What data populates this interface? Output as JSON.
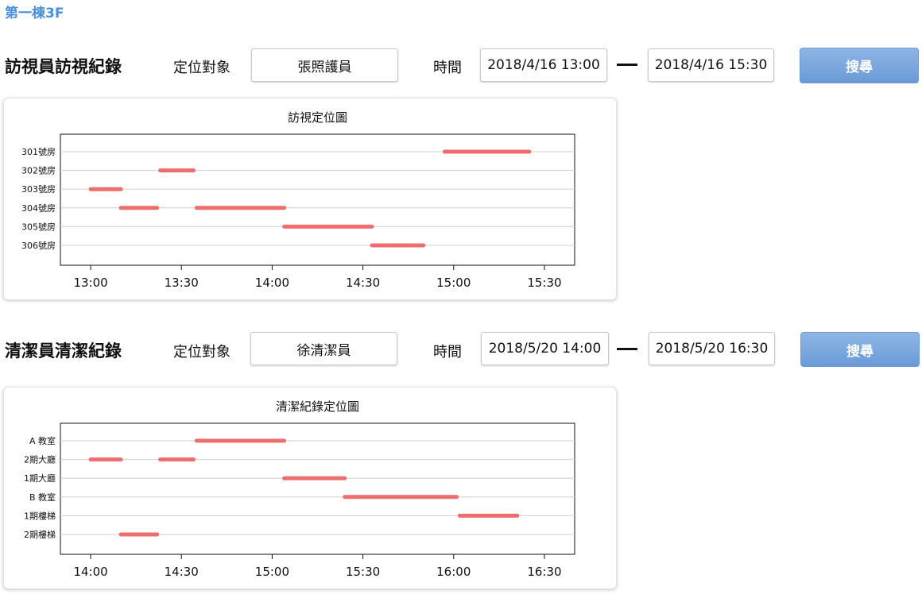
{
  "page": {
    "title": "第一棟3F"
  },
  "sections": [
    {
      "title": "訪視員訪視紀錄",
      "target_label": "定位對象",
      "target_value": "張照護員",
      "time_label": "時間",
      "start": "2018/4/16 13:00",
      "end": "2018/4/16 15:30",
      "search_label": "搜尋"
    },
    {
      "title": "清潔員清潔紀錄",
      "target_label": "定位對象",
      "target_value": "徐清潔員",
      "time_label": "時間",
      "start": "2018/5/20 14:00",
      "end": "2018/5/20 16:30",
      "search_label": "搜尋"
    }
  ],
  "chart_data": [
    {
      "type": "timeline",
      "title": "訪視定位圖",
      "categories": [
        "301號房",
        "302號房",
        "303號房",
        "304號房",
        "305號房",
        "306號房"
      ],
      "x_ticks": [
        "13:00",
        "13:30",
        "14:00",
        "14:30",
        "15:00",
        "15:30"
      ],
      "x_range": [
        "12:50",
        "15:40"
      ],
      "bar_color": "#ee6e6e",
      "series": [
        {
          "category": "301號房",
          "start": "14:57",
          "end": "15:25"
        },
        {
          "category": "302號房",
          "start": "13:23",
          "end": "13:34"
        },
        {
          "category": "303號房",
          "start": "13:00",
          "end": "13:10"
        },
        {
          "category": "304號房",
          "start": "13:10",
          "end": "13:22"
        },
        {
          "category": "304號房",
          "start": "13:35",
          "end": "14:04"
        },
        {
          "category": "305號房",
          "start": "14:04",
          "end": "14:33"
        },
        {
          "category": "306號房",
          "start": "14:33",
          "end": "14:50"
        }
      ]
    },
    {
      "type": "timeline",
      "title": "清潔紀錄定位圖",
      "categories": [
        "A 教室",
        "2期大廳",
        "1期大廳",
        "B 教室",
        "1期樓梯",
        "2期樓梯"
      ],
      "x_ticks": [
        "14:00",
        "14:30",
        "15:00",
        "15:30",
        "16:00",
        "16:30"
      ],
      "x_range": [
        "13:50",
        "16:40"
      ],
      "bar_color": "#ee6e6e",
      "series": [
        {
          "category": "A 教室",
          "start": "14:35",
          "end": "15:04"
        },
        {
          "category": "2期大廳",
          "start": "14:00",
          "end": "14:10"
        },
        {
          "category": "2期大廳",
          "start": "14:23",
          "end": "14:34"
        },
        {
          "category": "1期大廳",
          "start": "15:04",
          "end": "15:24"
        },
        {
          "category": "B 教室",
          "start": "15:24",
          "end": "16:01"
        },
        {
          "category": "1期樓梯",
          "start": "16:02",
          "end": "16:21"
        },
        {
          "category": "2期樓梯",
          "start": "14:10",
          "end": "14:22"
        }
      ]
    }
  ]
}
